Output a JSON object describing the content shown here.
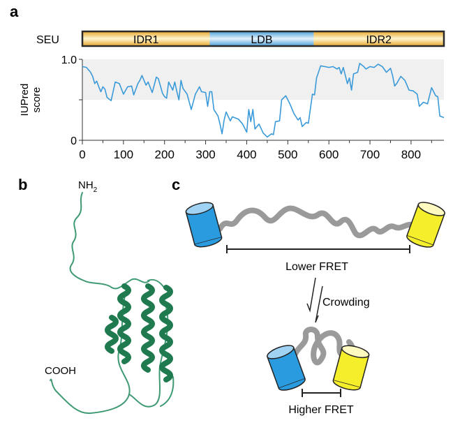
{
  "panels": {
    "a": "a",
    "b": "b",
    "c": "c"
  },
  "domain_bar": {
    "protein": "SEU",
    "segments": [
      {
        "label": "IDR1",
        "start": 0,
        "end": 310,
        "color": "#f0c050"
      },
      {
        "label": "LDB",
        "start": 310,
        "end": 563,
        "color": "#5aa9dc"
      },
      {
        "label": "IDR2",
        "start": 563,
        "end": 880,
        "color": "#f0c050"
      }
    ]
  },
  "chart_data": {
    "type": "line",
    "title": "",
    "xlabel": "",
    "ylabel": "IUPred score",
    "ylabel_lines": [
      "IUPred",
      "score"
    ],
    "xlim": [
      0,
      880
    ],
    "ylim": [
      0,
      1.0
    ],
    "xticks": [
      0,
      100,
      200,
      300,
      400,
      500,
      600,
      700,
      800
    ],
    "yticks": [
      0,
      1.0
    ],
    "ytick_labels": [
      "0",
      "1.0"
    ],
    "shaded_band": [
      0.5,
      1.0
    ],
    "grid": false,
    "line_color": "#3a9ad9",
    "band_color": "#f0f0f0",
    "x": [
      0,
      10,
      20,
      25,
      30,
      35,
      40,
      45,
      50,
      55,
      60,
      70,
      80,
      90,
      100,
      110,
      120,
      125,
      135,
      140,
      145,
      155,
      160,
      170,
      180,
      185,
      195,
      200,
      205,
      210,
      220,
      225,
      230,
      235,
      240,
      245,
      255,
      265,
      275,
      285,
      290,
      300,
      305,
      310,
      315,
      320,
      330,
      335,
      340,
      345,
      350,
      360,
      365,
      380,
      390,
      400,
      405,
      410,
      415,
      420,
      430,
      440,
      450,
      460,
      465,
      470,
      480,
      485,
      495,
      505,
      515,
      525,
      530,
      535,
      545,
      550,
      560,
      565,
      570,
      580,
      590,
      600,
      610,
      620,
      625,
      630,
      635,
      645,
      650,
      655,
      660,
      670,
      675,
      685,
      690,
      700,
      710,
      720,
      730,
      740,
      750,
      755,
      760,
      765,
      775,
      785,
      795,
      805,
      815,
      820,
      830,
      840,
      850,
      860,
      865,
      870,
      880
    ],
    "y": [
      0.91,
      0.9,
      0.84,
      0.79,
      0.7,
      0.73,
      0.66,
      0.6,
      0.66,
      0.63,
      0.53,
      0.49,
      0.72,
      0.7,
      0.57,
      0.66,
      0.67,
      0.56,
      0.7,
      0.74,
      0.8,
      0.68,
      0.72,
      0.59,
      0.78,
      0.76,
      0.58,
      0.54,
      0.52,
      0.72,
      0.62,
      0.72,
      0.6,
      0.5,
      0.74,
      0.64,
      0.57,
      0.38,
      0.57,
      0.66,
      0.6,
      0.59,
      0.42,
      0.6,
      0.6,
      0.38,
      0.3,
      0.2,
      0.08,
      0.25,
      0.35,
      0.24,
      0.29,
      0.26,
      0.2,
      0.1,
      0.38,
      0.23,
      0.38,
      0.14,
      0.2,
      0.09,
      0.04,
      0.08,
      0.07,
      0.23,
      0.24,
      0.5,
      0.55,
      0.45,
      0.33,
      0.25,
      0.28,
      0.17,
      0.22,
      0.21,
      0.57,
      0.56,
      0.77,
      0.92,
      0.91,
      0.9,
      0.91,
      0.88,
      0.9,
      0.82,
      0.9,
      0.7,
      0.77,
      0.62,
      0.82,
      0.84,
      0.95,
      0.91,
      0.88,
      0.91,
      0.9,
      0.94,
      0.91,
      0.84,
      0.89,
      0.8,
      0.67,
      0.7,
      0.79,
      0.74,
      0.62,
      0.61,
      0.57,
      0.42,
      0.47,
      0.45,
      0.65,
      0.55,
      0.54,
      0.3,
      0.28
    ]
  },
  "structure": {
    "n_terminus": "NH",
    "n_terminus_sub": "2",
    "c_terminus": "COOH",
    "color": "#2e8b63"
  },
  "fret": {
    "lower_label": "Lower FRET",
    "higher_label": "Higher FRET",
    "condition": "Crowding",
    "donor_color": "#2b9be0",
    "acceptor_color": "#f5ee2a",
    "linker_color": "#999999"
  }
}
